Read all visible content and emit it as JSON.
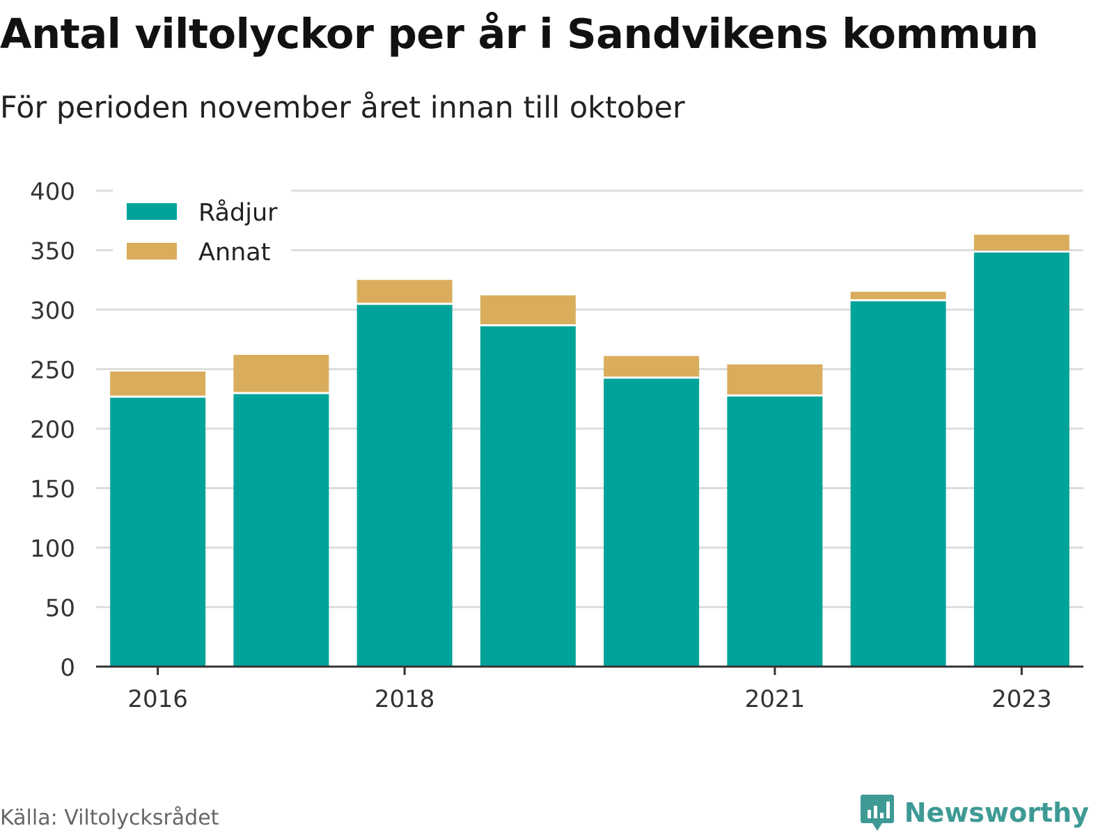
{
  "header": {
    "title": "Antal viltolyckor per år i Sandvikens kommun",
    "subtitle": "För perioden november året innan till oktober"
  },
  "footer": {
    "source": "Källa: Viltolycksrådet",
    "brand": "Newsworthy",
    "brand_icon": "bar-chart-speech-bubble-icon"
  },
  "colors": {
    "radjur": "#00a39a",
    "annat": "#d9ad5c",
    "grid": "#dddddd",
    "axis": "#333333",
    "brand": "#3f9a95"
  },
  "chart_data": {
    "type": "bar",
    "stacked": true,
    "categories": [
      "2016",
      "2017",
      "2018",
      "2019",
      "2020",
      "2021",
      "2022",
      "2023"
    ],
    "x_tick_labels": [
      "2016",
      "2018",
      "2021",
      "2023"
    ],
    "series": [
      {
        "name": "Rådjur",
        "color": "#00a39a",
        "values": [
          226,
          229,
          304,
          286,
          242,
          227,
          307,
          348
        ]
      },
      {
        "name": "Annat",
        "color": "#d9ad5c",
        "values": [
          22,
          33,
          21,
          26,
          19,
          27,
          8,
          15
        ]
      }
    ],
    "ylim": [
      0,
      400
    ],
    "yticks": [
      0,
      50,
      100,
      150,
      200,
      250,
      300,
      350,
      400
    ],
    "grid": true,
    "legend_position": "top-left",
    "xlabel": "",
    "ylabel": ""
  }
}
